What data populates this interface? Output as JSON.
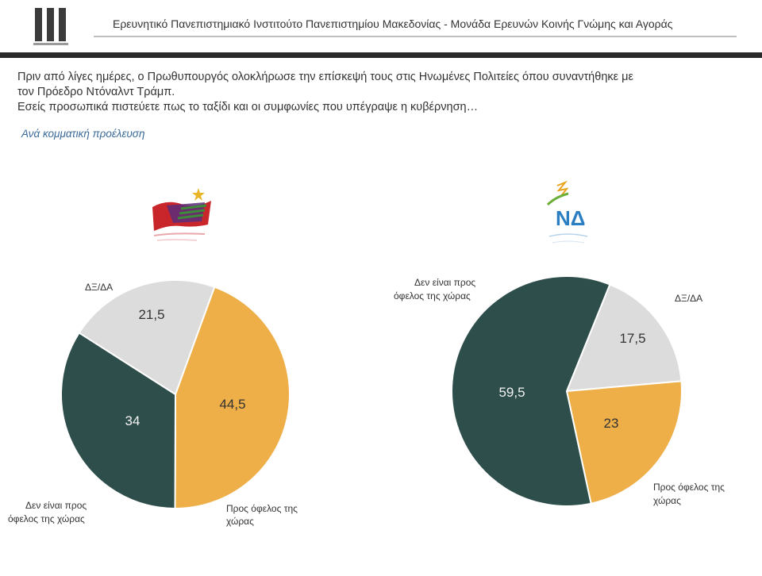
{
  "header": {
    "title": "Ερευνητικό Πανεπιστημιακό Ινστιτούτο Πανεπιστημίου Μακεδονίας - Μονάδα Ερευνών Κοινής Γνώμης και Αγοράς"
  },
  "question": {
    "line1": "Πριν από λίγες ημέρες, ο Πρωθυπουργός ολοκλήρωσε την επίσκεψή τους στις Ηνωμένες Πολιτείες όπου συναντήθηκε με",
    "line2": "τον Πρόεδρο Ντόναλντ Τράμπ.",
    "line3": "Εσείς προσωπικά πιστεύετε πως το ταξίδι και οι συμφωνίες που υπέγραψε η κυβέρνηση…"
  },
  "subtitle": "Ανά κομματική προέλευση",
  "logos": {
    "nd_text": "ΝΔ"
  },
  "colors": {
    "orange": "#EEAE48",
    "dark": "#2E4E4B",
    "grey": "#DCDCDC"
  },
  "chart_data": [
    {
      "type": "pie",
      "party": "ΣΥΡΙΖΑ",
      "slices": [
        {
          "label": "Προς όφελος της χώρας",
          "value": 44.5,
          "display": "44,5",
          "color": "#EEAE48"
        },
        {
          "label": "Δεν είναι προς όφελος της χώρας",
          "value": 34,
          "display": "34",
          "color": "#2E4E4B"
        },
        {
          "label": "ΔΞ/ΔΑ",
          "value": 21.5,
          "display": "21,5",
          "color": "#DCDCDC"
        }
      ],
      "label_lines": {
        "ofelos": [
          "Προς όφελος της",
          "χώρας"
        ],
        "den": [
          "Δεν είναι προς",
          "όφελος της χώρας"
        ],
        "dxda": [
          "ΔΞ/ΔΑ"
        ]
      }
    },
    {
      "type": "pie",
      "party": "ΝΔ",
      "slices": [
        {
          "label": "ΔΞ/ΔΑ",
          "value": 17.5,
          "display": "17,5",
          "color": "#DCDCDC"
        },
        {
          "label": "Προς όφελος της χώρας",
          "value": 23,
          "display": "23",
          "color": "#EEAE48"
        },
        {
          "label": "Δεν είναι προς όφελος της χώρας",
          "value": 59.5,
          "display": "59,5",
          "color": "#2E4E4B"
        }
      ],
      "label_lines": {
        "ofelos": [
          "Προς όφελος της",
          "χώρας"
        ],
        "den": [
          "Δεν είναι προς",
          "όφελος της χώρας"
        ],
        "dxda": [
          "ΔΞ/ΔΑ"
        ]
      }
    }
  ]
}
